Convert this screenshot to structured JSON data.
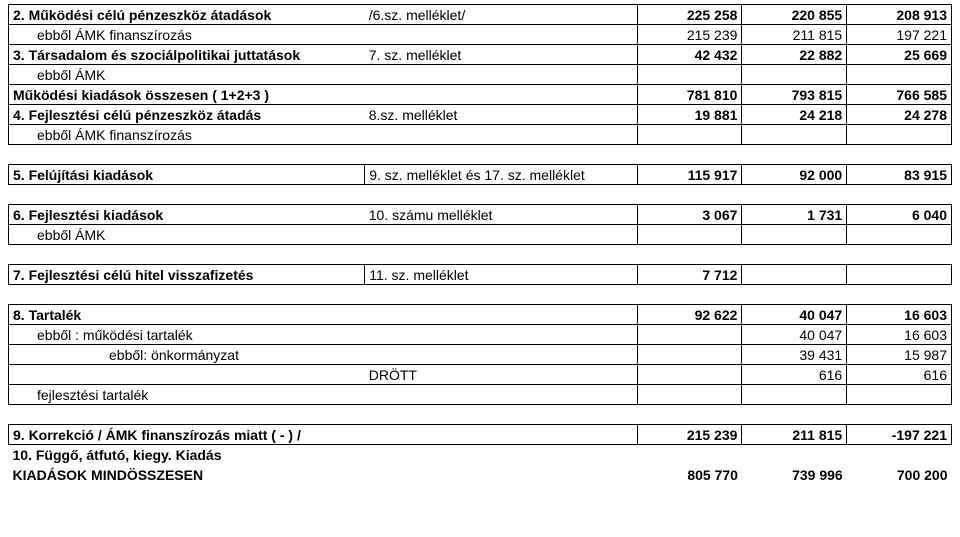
{
  "r2": {
    "label": "2. Működési célú pénzeszköz átadások",
    "att": "/6.sz. melléklet/",
    "c1": "225 258",
    "c2": "220 855",
    "c3": "208 913"
  },
  "r2a": {
    "label": "ebből ÁMK finanszírozás",
    "c1": "215 239",
    "c2": "211 815",
    "c3": "197 221"
  },
  "r3": {
    "label": "3. Társadalom és szociálpolitikai juttatások",
    "att": "7. sz. melléklet",
    "c1": "42 432",
    "c2": "22 882",
    "c3": "25 669"
  },
  "r3a": {
    "label": "ebből ÁMK"
  },
  "rMko": {
    "label": "Működési kiadások összesen ( 1+2+3 )",
    "c1": "781 810",
    "c2": "793 815",
    "c3": "766 585"
  },
  "r4": {
    "label": "4. Fejlesztési célú pénzeszköz átadás",
    "att": "8.sz. melléklet",
    "c1": "19 881",
    "c2": "24 218",
    "c3": "24 278"
  },
  "r4a": {
    "label": "ebből ÁMK finanszírozás"
  },
  "r5": {
    "label": "5. Felújítási kiadások",
    "att": "9. sz. melléklet és 17. sz. melléklet",
    "c1": "115 917",
    "c2": "92 000",
    "c3": "83 915"
  },
  "r6": {
    "label": "6. Fejlesztési kiadások",
    "att": "10. számu melléklet",
    "c1": "3 067",
    "c2": "1 731",
    "c3": "6 040"
  },
  "r6a": {
    "label": "ebből ÁMK"
  },
  "r7": {
    "label": "7. Fejlesztési célú hitel visszafizetés",
    "att": "11. sz. melléklet",
    "c1": "7 712"
  },
  "r8": {
    "label": "8. Tartalék",
    "c1": "92 622",
    "c2": "40 047",
    "c3": "16 603"
  },
  "r8a": {
    "label": "ebből : működési tartalék",
    "c2": "40 047",
    "c3": "16 603"
  },
  "r8b": {
    "label": "ebből: önkormányzat",
    "c2": "39 431",
    "c3": "15 987"
  },
  "r8c": {
    "label": "DRÖTT",
    "c2": "616",
    "c3": "616"
  },
  "r8d": {
    "label": "fejlesztési tartalék"
  },
  "r9": {
    "label": "9. Korrekció / ÁMK finanszírozás miatt ( - )  /",
    "c1": "215 239",
    "c2": "211 815",
    "c3": "-197 221"
  },
  "r10": {
    "label": "10. Függő, átfutó, kiegy. Kiadás"
  },
  "rTot": {
    "label": "KIADÁSOK MINDÖSSZESEN",
    "c1": "805 770",
    "c2": "739 996",
    "c3": "700 200"
  }
}
